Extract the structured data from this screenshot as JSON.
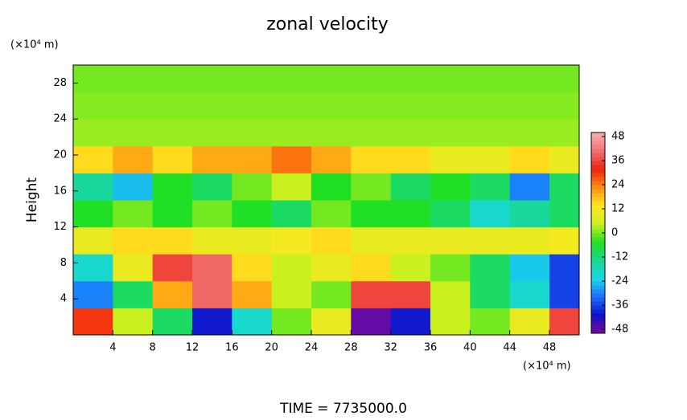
{
  "chart_data": {
    "type": "heatmap",
    "title": "zonal velocity",
    "y_label": "Height",
    "y_unit_label": "(×10⁴ m)",
    "x_unit_label": "(×10⁴ m)",
    "footer": "TIME = 7735000.0",
    "xlim": [
      0,
      51
    ],
    "ylim": [
      0,
      30
    ],
    "xticks": [
      4,
      8,
      12,
      16,
      20,
      24,
      28,
      32,
      36,
      40,
      44,
      48
    ],
    "yticks": [
      4,
      8,
      12,
      16,
      20,
      24,
      28
    ],
    "x": [
      2,
      6,
      10,
      14,
      18,
      22,
      26,
      30,
      34,
      38,
      42,
      46,
      50
    ],
    "y": [
      1.5,
      4.5,
      7.5,
      10.5,
      13.5,
      16.5,
      19.5,
      22.5,
      25.5,
      28.5
    ],
    "z": [
      [
        30,
        5,
        -10,
        -40,
        -20,
        0,
        10,
        -48,
        -40,
        5,
        0,
        10,
        36
      ],
      [
        -30,
        -10,
        20,
        40,
        20,
        5,
        0,
        36,
        36,
        5,
        -10,
        -20,
        -36
      ],
      [
        -20,
        10,
        36,
        40,
        15,
        5,
        10,
        15,
        5,
        0,
        -10,
        -24,
        -36
      ],
      [
        10,
        15,
        15,
        10,
        10,
        12,
        15,
        10,
        10,
        10,
        10,
        10,
        12
      ],
      [
        -5,
        0,
        -5,
        0,
        -5,
        -10,
        0,
        -5,
        -5,
        -10,
        -20,
        -15,
        -10
      ],
      [
        -15,
        -25,
        -5,
        -10,
        0,
        5,
        -5,
        0,
        -10,
        -5,
        -10,
        -30,
        -10
      ],
      [
        15,
        20,
        15,
        20,
        20,
        25,
        20,
        15,
        15,
        10,
        10,
        15,
        10
      ],
      [
        2,
        2,
        2,
        2,
        2,
        2,
        2,
        2,
        2,
        2,
        2,
        2,
        2
      ],
      [
        1,
        1,
        1,
        1,
        1,
        1,
        1,
        1,
        1,
        1,
        1,
        1,
        1
      ],
      [
        0,
        0,
        0,
        0,
        0,
        0,
        0,
        0,
        0,
        0,
        0,
        0,
        0
      ]
    ],
    "clim": [
      -50,
      50
    ],
    "colorbar_ticks": [
      48,
      36,
      24,
      12,
      0,
      -12,
      -24,
      -36,
      -48
    ],
    "colormap": [
      "#7a0a9a",
      "#1010c8",
      "#1a6cff",
      "#18d8e8",
      "#18d890",
      "#20e020",
      "#c8f020",
      "#ffe820",
      "#ff9010",
      "#f02010",
      "#f07070",
      "#f8b0b0"
    ]
  }
}
